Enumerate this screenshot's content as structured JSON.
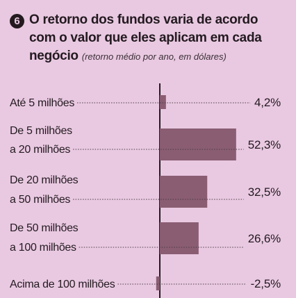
{
  "badge": "6",
  "title_lines": [
    "O retorno dos fundos varia de acordo",
    "com o valor que eles aplicam em cada",
    "negócio"
  ],
  "subtitle": "(retorno médio por ano, em dólares)",
  "colors": {
    "background": "#e9c9e1",
    "bar": "#8a5d72",
    "text": "#231a20"
  },
  "chart_data": {
    "type": "bar",
    "orientation": "horizontal",
    "title": "O retorno dos fundos varia de acordo com o valor que eles aplicam em cada negócio",
    "subtitle": "(retorno médio por ano, em dólares)",
    "categories": [
      [
        "Até 5 milhões"
      ],
      [
        "De 5 milhões",
        "a 20 milhões"
      ],
      [
        "De 20 milhões",
        "a 50 milhões"
      ],
      [
        "De 50 milhões",
        "a 100 milhões"
      ],
      [
        "Acima de 100 milhões"
      ]
    ],
    "values": [
      4.2,
      52.3,
      32.5,
      26.6,
      -2.5
    ],
    "value_labels": [
      "4,2%",
      "52,3%",
      "32,5%",
      "26,6%",
      "-2,5%"
    ],
    "unit": "%",
    "xlim": [
      -2.5,
      52.3
    ],
    "grid": false,
    "legend": "none"
  }
}
